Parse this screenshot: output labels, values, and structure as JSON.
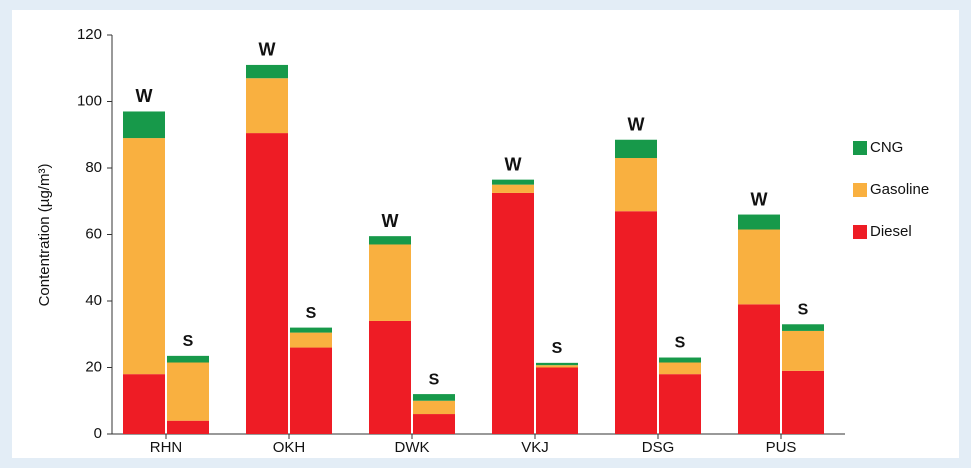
{
  "chart_data": {
    "type": "grouped_stacked_bar",
    "y_label": "Contentration (µg/m³)",
    "categories": [
      "RHN",
      "OKH",
      "DWK",
      "VKJ",
      "DSG",
      "PUS"
    ],
    "bar_labels": [
      "W",
      "S"
    ],
    "series": [
      {
        "name": "Diesel",
        "color": "#ee1c25",
        "values": [
          [
            18,
            4
          ],
          [
            90.5,
            26
          ],
          [
            34,
            6
          ],
          [
            72.5,
            20
          ],
          [
            67,
            18
          ],
          [
            39,
            19
          ]
        ]
      },
      {
        "name": "Gasoline",
        "color": "#f9b040",
        "values": [
          [
            71,
            17.5
          ],
          [
            16.5,
            4.5
          ],
          [
            23,
            4
          ],
          [
            2.5,
            0.7
          ],
          [
            16,
            3.5
          ],
          [
            22.5,
            12
          ]
        ]
      },
      {
        "name": "CNG",
        "color": "#17994a",
        "values": [
          [
            8,
            2
          ],
          [
            4,
            1.5
          ],
          [
            2.5,
            2
          ],
          [
            1.5,
            0.7
          ],
          [
            5.5,
            1.5
          ],
          [
            4.5,
            2
          ]
        ]
      }
    ],
    "ylim": [
      0,
      120
    ],
    "yticks": [
      0,
      20,
      40,
      60,
      80,
      100,
      120
    ]
  }
}
